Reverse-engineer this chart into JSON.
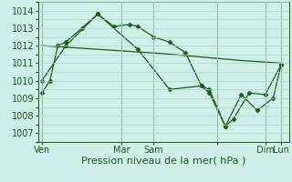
{
  "background_color": "#cff0e8",
  "grid_color": "#b0d8cc",
  "line_color": "#1a5c1a",
  "marker_color": "#1a5c1a",
  "series1_x": [
    0,
    1,
    2,
    3,
    5,
    7,
    9,
    11,
    12,
    14,
    16,
    18,
    20,
    21,
    23,
    24,
    26,
    28,
    30
  ],
  "series1_y": [
    1009.3,
    1010.0,
    1012.0,
    1012.2,
    1013.0,
    1013.8,
    1013.1,
    1013.2,
    1013.1,
    1012.5,
    1012.2,
    1011.6,
    1009.7,
    1009.5,
    1007.4,
    1007.8,
    1009.3,
    1009.2,
    1010.9
  ],
  "series2_x": [
    0,
    5,
    10,
    15,
    20,
    25,
    30
  ],
  "series2_y": [
    1012.0,
    1011.85,
    1011.7,
    1011.55,
    1011.35,
    1011.15,
    1011.0
  ],
  "series3_x": [
    0,
    3,
    7,
    12,
    16,
    20,
    21,
    23,
    25,
    27,
    29,
    30
  ],
  "series3_y": [
    1010.0,
    1012.0,
    1013.8,
    1011.8,
    1009.5,
    1009.7,
    1009.3,
    1007.4,
    1009.2,
    1008.3,
    1009.0,
    1010.9
  ],
  "xtick_positions": [
    0,
    10,
    14,
    22,
    28,
    30
  ],
  "xtick_labels": [
    "Ven",
    "Mar",
    "Sam",
    "",
    "Dim",
    "Lun"
  ],
  "vline_positions": [
    0,
    10,
    14,
    22,
    28,
    30
  ],
  "ylim": [
    1006.5,
    1014.5
  ],
  "ytick_values": [
    1007,
    1008,
    1009,
    1010,
    1011,
    1012,
    1013,
    1014
  ],
  "xlim": [
    -0.5,
    31
  ],
  "xlabel": "Pression niveau de la mer( hPa )",
  "xlabel_fontsize": 8,
  "tick_fontsize": 7,
  "plot_area_bg": "#cff0e8",
  "fig_bg": "#cff0e8"
}
